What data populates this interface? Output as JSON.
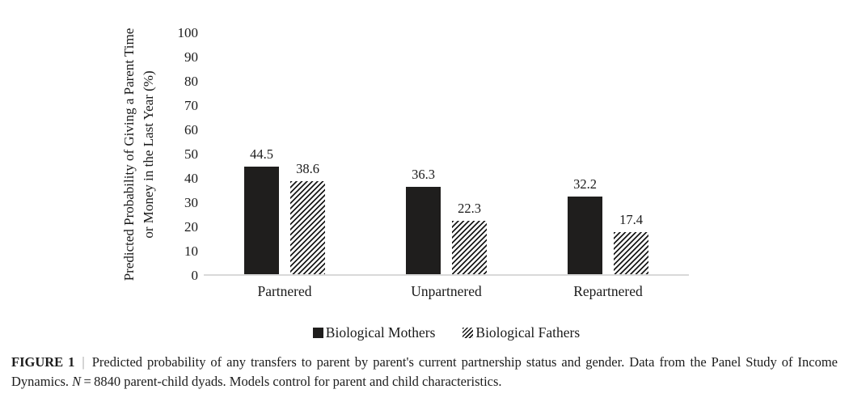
{
  "figure": {
    "caption": {
      "label": "FIGURE 1",
      "separator": "|",
      "text_main": "Predicted probability of any transfers to parent by parent's current partnership status and gender. Data from the Panel Study of Income Dynamics. ",
      "n_symbol": "N",
      "text_after_n": " = 8840 parent-child dyads. Models control for parent and child characteristics."
    }
  },
  "chart_data": {
    "type": "bar",
    "title": "",
    "ylabel_line1": "Predicted Probability of Giving a Parent Time",
    "ylabel_line2": "or Money in the Last Year (%)",
    "categories": [
      "Partnered",
      "Unpartnered",
      "Repartnered"
    ],
    "series": [
      {
        "name": "Biological Mothers",
        "pattern": "solid",
        "values": [
          44.5,
          36.3,
          32.2
        ]
      },
      {
        "name": "Biological Fathers",
        "pattern": "hatched",
        "values": [
          38.6,
          22.3,
          17.4
        ]
      }
    ],
    "ylim": [
      0,
      100
    ],
    "y_ticks": [
      100,
      90,
      80,
      70,
      60,
      50,
      40,
      30,
      20,
      10,
      0
    ],
    "grid": false,
    "legend_position": "bottom",
    "colors": {
      "bar": "#1f1e1d",
      "baseline": "#d9d9d9",
      "text": "#1a1a1a"
    }
  }
}
